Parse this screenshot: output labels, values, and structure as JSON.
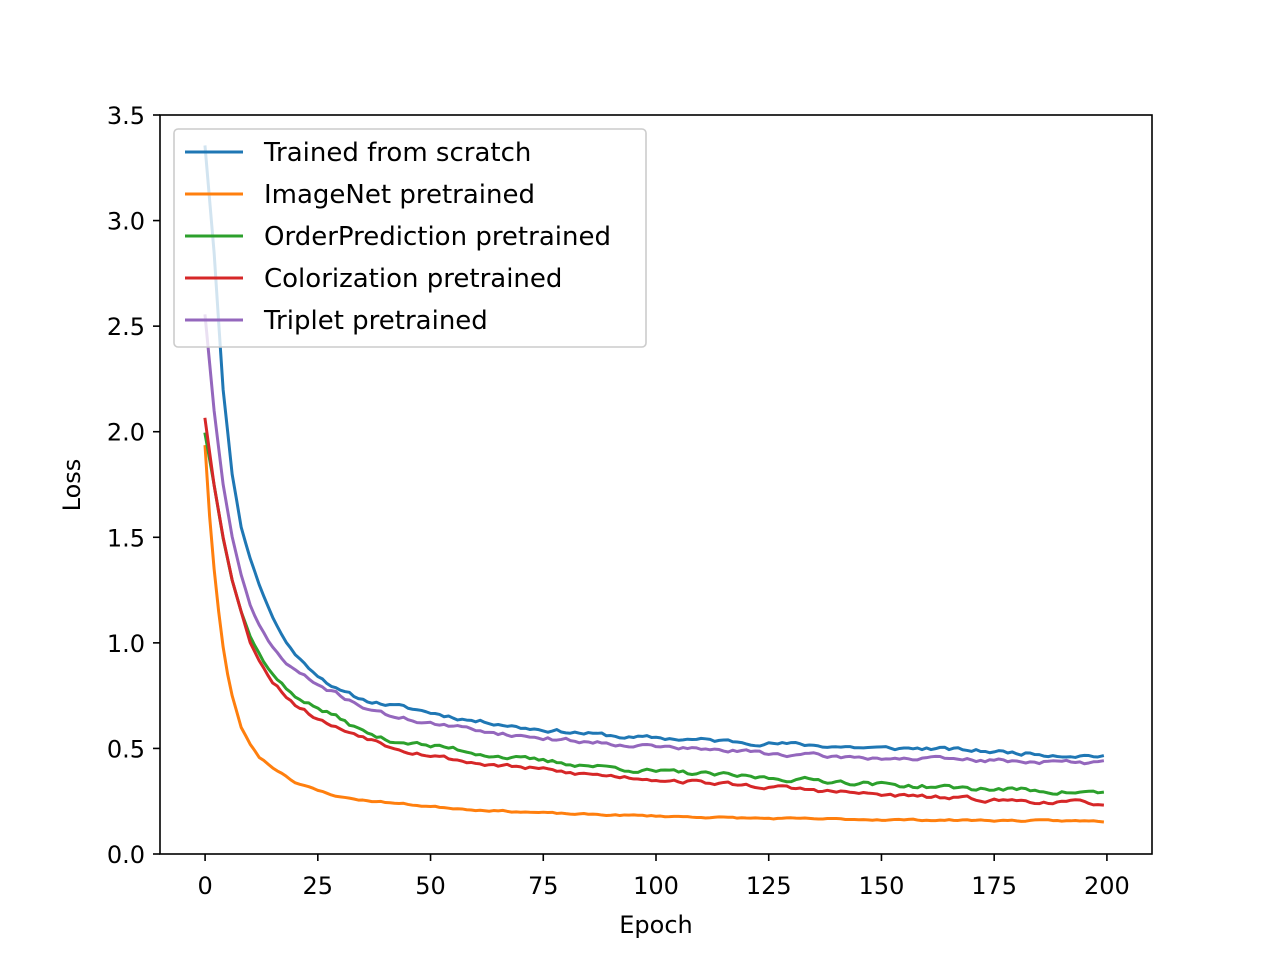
{
  "chart_data": {
    "type": "line",
    "title": "",
    "xlabel": "Epoch",
    "ylabel": "Loss",
    "xlim": [
      -10,
      210
    ],
    "ylim": [
      0,
      3.5
    ],
    "xticks": [
      0,
      25,
      50,
      75,
      100,
      125,
      150,
      175,
      200
    ],
    "xtick_labels": [
      "0",
      "25",
      "50",
      "75",
      "100",
      "125",
      "150",
      "175",
      "200"
    ],
    "yticks": [
      0.0,
      0.5,
      1.0,
      1.5,
      2.0,
      2.5,
      3.0,
      3.5
    ],
    "ytick_labels": [
      "0.0",
      "0.5",
      "1.0",
      "1.5",
      "2.0",
      "2.5",
      "3.0",
      "3.5"
    ],
    "grid": false,
    "legend_position": "upper-left",
    "x": {
      "start": 0,
      "end": 199,
      "step": 1
    },
    "series": [
      {
        "name": "Trained from scratch",
        "color": "#1f77b4",
        "keypoints": [
          [
            0,
            3.35
          ],
          [
            2,
            2.85
          ],
          [
            4,
            2.2
          ],
          [
            6,
            1.8
          ],
          [
            8,
            1.55
          ],
          [
            10,
            1.4
          ],
          [
            12,
            1.28
          ],
          [
            15,
            1.12
          ],
          [
            18,
            1.0
          ],
          [
            22,
            0.9
          ],
          [
            25,
            0.85
          ],
          [
            30,
            0.77
          ],
          [
            35,
            0.73
          ],
          [
            40,
            0.71
          ],
          [
            45,
            0.69
          ],
          [
            50,
            0.67
          ],
          [
            55,
            0.65
          ],
          [
            60,
            0.63
          ],
          [
            65,
            0.62
          ],
          [
            70,
            0.6
          ],
          [
            75,
            0.59
          ],
          [
            80,
            0.58
          ],
          [
            85,
            0.57
          ],
          [
            90,
            0.56
          ],
          [
            95,
            0.55
          ],
          [
            100,
            0.55
          ],
          [
            110,
            0.54
          ],
          [
            120,
            0.53
          ],
          [
            130,
            0.52
          ],
          [
            140,
            0.51
          ],
          [
            150,
            0.5
          ],
          [
            160,
            0.5
          ],
          [
            170,
            0.49
          ],
          [
            180,
            0.48
          ],
          [
            190,
            0.47
          ],
          [
            199,
            0.465
          ]
        ],
        "noise": 0.008,
        "seed": 11
      },
      {
        "name": "ImageNet pretrained",
        "color": "#ff7f0e",
        "keypoints": [
          [
            0,
            1.93
          ],
          [
            1,
            1.6
          ],
          [
            2,
            1.35
          ],
          [
            3,
            1.15
          ],
          [
            4,
            0.98
          ],
          [
            5,
            0.85
          ],
          [
            6,
            0.75
          ],
          [
            8,
            0.6
          ],
          [
            10,
            0.52
          ],
          [
            12,
            0.46
          ],
          [
            15,
            0.41
          ],
          [
            18,
            0.37
          ],
          [
            20,
            0.34
          ],
          [
            25,
            0.3
          ],
          [
            30,
            0.27
          ],
          [
            35,
            0.255
          ],
          [
            40,
            0.245
          ],
          [
            45,
            0.235
          ],
          [
            50,
            0.225
          ],
          [
            60,
            0.21
          ],
          [
            70,
            0.2
          ],
          [
            80,
            0.19
          ],
          [
            90,
            0.185
          ],
          [
            100,
            0.18
          ],
          [
            110,
            0.175
          ],
          [
            120,
            0.17
          ],
          [
            130,
            0.167
          ],
          [
            140,
            0.165
          ],
          [
            150,
            0.163
          ],
          [
            160,
            0.161
          ],
          [
            170,
            0.16
          ],
          [
            180,
            0.158
          ],
          [
            190,
            0.157
          ],
          [
            199,
            0.155
          ]
        ],
        "noise": 0.003,
        "seed": 23
      },
      {
        "name": "OrderPrediction pretrained",
        "color": "#2ca02c",
        "keypoints": [
          [
            0,
            1.99
          ],
          [
            2,
            1.75
          ],
          [
            4,
            1.5
          ],
          [
            6,
            1.3
          ],
          [
            8,
            1.15
          ],
          [
            10,
            1.03
          ],
          [
            12,
            0.95
          ],
          [
            15,
            0.85
          ],
          [
            18,
            0.78
          ],
          [
            20,
            0.75
          ],
          [
            25,
            0.69
          ],
          [
            30,
            0.64
          ],
          [
            35,
            0.58
          ],
          [
            40,
            0.54
          ],
          [
            45,
            0.53
          ],
          [
            50,
            0.51
          ],
          [
            55,
            0.5
          ],
          [
            60,
            0.48
          ],
          [
            65,
            0.465
          ],
          [
            70,
            0.45
          ],
          [
            75,
            0.44
          ],
          [
            80,
            0.43
          ],
          [
            85,
            0.42
          ],
          [
            90,
            0.41
          ],
          [
            95,
            0.4
          ],
          [
            100,
            0.39
          ],
          [
            110,
            0.38
          ],
          [
            120,
            0.365
          ],
          [
            130,
            0.355
          ],
          [
            140,
            0.345
          ],
          [
            150,
            0.33
          ],
          [
            160,
            0.32
          ],
          [
            170,
            0.31
          ],
          [
            180,
            0.305
          ],
          [
            190,
            0.295
          ],
          [
            199,
            0.29
          ]
        ],
        "noise": 0.009,
        "seed": 37
      },
      {
        "name": "Colorization pretrained",
        "color": "#d62728",
        "keypoints": [
          [
            0,
            2.06
          ],
          [
            2,
            1.75
          ],
          [
            4,
            1.5
          ],
          [
            6,
            1.3
          ],
          [
            8,
            1.15
          ],
          [
            10,
            1.0
          ],
          [
            12,
            0.92
          ],
          [
            15,
            0.82
          ],
          [
            18,
            0.75
          ],
          [
            20,
            0.71
          ],
          [
            25,
            0.64
          ],
          [
            30,
            0.59
          ],
          [
            35,
            0.56
          ],
          [
            40,
            0.52
          ],
          [
            45,
            0.49
          ],
          [
            50,
            0.47
          ],
          [
            55,
            0.45
          ],
          [
            60,
            0.43
          ],
          [
            65,
            0.42
          ],
          [
            70,
            0.41
          ],
          [
            75,
            0.4
          ],
          [
            80,
            0.385
          ],
          [
            90,
            0.37
          ],
          [
            100,
            0.355
          ],
          [
            110,
            0.34
          ],
          [
            120,
            0.325
          ],
          [
            130,
            0.31
          ],
          [
            140,
            0.295
          ],
          [
            150,
            0.28
          ],
          [
            160,
            0.27
          ],
          [
            170,
            0.26
          ],
          [
            180,
            0.252
          ],
          [
            190,
            0.245
          ],
          [
            199,
            0.24
          ]
        ],
        "noise": 0.008,
        "seed": 53
      },
      {
        "name": "Triplet pretrained",
        "color": "#9467bd",
        "keypoints": [
          [
            0,
            2.55
          ],
          [
            2,
            2.1
          ],
          [
            4,
            1.75
          ],
          [
            6,
            1.5
          ],
          [
            8,
            1.32
          ],
          [
            10,
            1.18
          ],
          [
            12,
            1.08
          ],
          [
            15,
            0.98
          ],
          [
            18,
            0.9
          ],
          [
            22,
            0.84
          ],
          [
            25,
            0.8
          ],
          [
            30,
            0.75
          ],
          [
            35,
            0.7
          ],
          [
            40,
            0.66
          ],
          [
            45,
            0.64
          ],
          [
            50,
            0.62
          ],
          [
            55,
            0.6
          ],
          [
            60,
            0.59
          ],
          [
            65,
            0.575
          ],
          [
            70,
            0.56
          ],
          [
            75,
            0.55
          ],
          [
            80,
            0.54
          ],
          [
            90,
            0.525
          ],
          [
            100,
            0.51
          ],
          [
            110,
            0.495
          ],
          [
            120,
            0.485
          ],
          [
            130,
            0.47
          ],
          [
            140,
            0.46
          ],
          [
            150,
            0.455
          ],
          [
            160,
            0.45
          ],
          [
            170,
            0.445
          ],
          [
            180,
            0.44
          ],
          [
            190,
            0.435
          ],
          [
            199,
            0.43
          ]
        ],
        "noise": 0.008,
        "seed": 71
      }
    ]
  }
}
